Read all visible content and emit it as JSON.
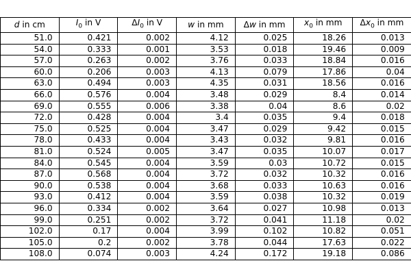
{
  "table": {
    "columns": [
      {
        "sym": "d",
        "prefix": "",
        "unit": " in cm"
      },
      {
        "sym": "I",
        "sub": "0",
        "prefix": "",
        "unit": " in V"
      },
      {
        "sym": "I",
        "sub": "0",
        "prefix": "Δ",
        "unit": " in V"
      },
      {
        "sym": "w",
        "prefix": "",
        "unit": " in mm"
      },
      {
        "sym": "w",
        "prefix": "Δ",
        "unit": " in mm"
      },
      {
        "sym": "x",
        "sub": "0",
        "prefix": "",
        "unit": " in mm"
      },
      {
        "sym": "x",
        "sub": "0",
        "prefix": "Δ",
        "unit": " in mm"
      }
    ],
    "rows": [
      [
        "51.0",
        "0.421",
        "0.002",
        "4.12",
        "0.025",
        "18.26",
        "0.013"
      ],
      [
        "54.0",
        "0.333",
        "0.001",
        "3.53",
        "0.018",
        "19.46",
        "0.009"
      ],
      [
        "57.0",
        "0.263",
        "0.002",
        "3.76",
        "0.033",
        "18.84",
        "0.016"
      ],
      [
        "60.0",
        "0.206",
        "0.003",
        "4.13",
        "0.079",
        "17.86",
        "0.04"
      ],
      [
        "63.0",
        "0.494",
        "0.003",
        "4.35",
        "0.031",
        "18.56",
        "0.016"
      ],
      [
        "66.0",
        "0.576",
        "0.004",
        "3.48",
        "0.029",
        "8.4",
        "0.014"
      ],
      [
        "69.0",
        "0.555",
        "0.006",
        "3.38",
        "0.04",
        "8.6",
        "0.02"
      ],
      [
        "72.0",
        "0.428",
        "0.004",
        "3.4",
        "0.035",
        "9.4",
        "0.018"
      ],
      [
        "75.0",
        "0.525",
        "0.004",
        "3.47",
        "0.029",
        "9.42",
        "0.015"
      ],
      [
        "78.0",
        "0.433",
        "0.004",
        "3.43",
        "0.032",
        "9.81",
        "0.016"
      ],
      [
        "81.0",
        "0.524",
        "0.005",
        "3.47",
        "0.035",
        "10.07",
        "0.017"
      ],
      [
        "84.0",
        "0.545",
        "0.004",
        "3.59",
        "0.03",
        "10.72",
        "0.015"
      ],
      [
        "87.0",
        "0.568",
        "0.004",
        "3.72",
        "0.032",
        "10.32",
        "0.016"
      ],
      [
        "90.0",
        "0.538",
        "0.004",
        "3.68",
        "0.033",
        "10.63",
        "0.016"
      ],
      [
        "93.0",
        "0.412",
        "0.004",
        "3.59",
        "0.038",
        "10.32",
        "0.019"
      ],
      [
        "96.0",
        "0.334",
        "0.002",
        "3.64",
        "0.027",
        "10.98",
        "0.013"
      ],
      [
        "99.0",
        "0.251",
        "0.002",
        "3.72",
        "0.041",
        "11.18",
        "0.02"
      ],
      [
        "102.0",
        "0.17",
        "0.004",
        "3.99",
        "0.102",
        "10.82",
        "0.051"
      ],
      [
        "105.0",
        "0.2",
        "0.002",
        "3.78",
        "0.044",
        "17.63",
        "0.022"
      ],
      [
        "108.0",
        "0.074",
        "0.003",
        "4.24",
        "0.172",
        "19.18",
        "0.086"
      ]
    ]
  }
}
